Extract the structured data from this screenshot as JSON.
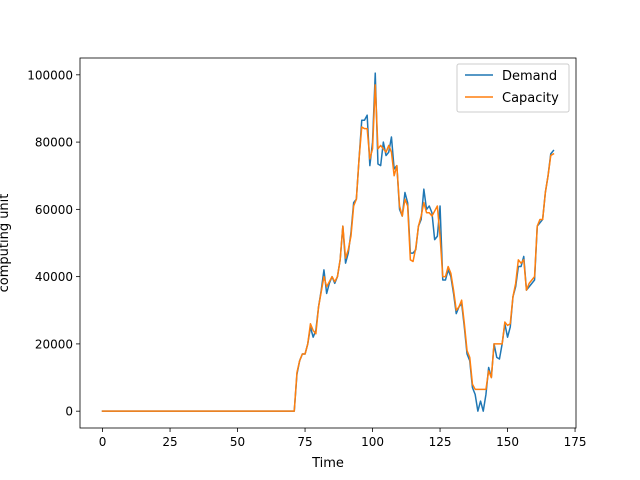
{
  "chart_data": {
    "type": "line",
    "title": "",
    "xlabel": "Time",
    "ylabel": "computing unit",
    "xlim": [
      -8.35,
      175.35
    ],
    "ylim": [
      -5000,
      105000
    ],
    "xticks": [
      0,
      25,
      50,
      75,
      100,
      125,
      150,
      175
    ],
    "xtick_labels": [
      "0",
      "25",
      "50",
      "75",
      "100",
      "125",
      "150",
      "175"
    ],
    "yticks": [
      0,
      20000,
      40000,
      60000,
      80000,
      100000
    ],
    "ytick_labels": [
      "0",
      "20000",
      "40000",
      "60000",
      "80000",
      "100000"
    ],
    "grid": false,
    "legend": "upper right",
    "series": [
      {
        "name": "Demand",
        "color": "#1f77b4",
        "x": [
          0,
          10,
          20,
          30,
          40,
          50,
          60,
          71,
          72,
          73,
          74,
          75,
          76,
          77,
          78,
          79,
          80,
          81,
          82,
          83,
          84,
          85,
          86,
          87,
          88,
          89,
          90,
          91,
          92,
          93,
          94,
          95,
          96,
          97,
          98,
          99,
          100,
          101,
          102,
          103,
          104,
          105,
          106,
          107,
          108,
          109,
          110,
          111,
          112,
          113,
          114,
          115,
          116,
          117,
          118,
          119,
          120,
          121,
          122,
          123,
          124,
          125,
          126,
          127,
          128,
          129,
          130,
          131,
          132,
          133,
          134,
          135,
          136,
          137,
          138,
          139,
          140,
          141,
          142,
          143,
          144,
          145,
          146,
          147,
          148,
          149,
          150,
          151,
          152,
          153,
          154,
          155,
          156,
          157,
          158,
          159,
          160,
          161,
          162,
          163,
          164,
          165,
          166,
          167
        ],
        "values": [
          0,
          0,
          0,
          0,
          0,
          0,
          0,
          0,
          11000,
          15000,
          17000,
          17000,
          20000,
          25000,
          22000,
          24000,
          31000,
          36000,
          42000,
          35000,
          38000,
          40000,
          38000,
          40000,
          45000,
          55000,
          44000,
          47000,
          53000,
          62000,
          63000,
          75000,
          86500,
          86500,
          88000,
          73000,
          80000,
          100500,
          73500,
          73000,
          80000,
          76000,
          77000,
          81500,
          72000,
          73000,
          60000,
          58000,
          65000,
          62000,
          47000,
          47000,
          48000,
          55000,
          57000,
          66000,
          60000,
          61000,
          59000,
          51000,
          52000,
          61000,
          39000,
          39000,
          42000,
          40000,
          35000,
          29000,
          31000,
          32000,
          25000,
          17000,
          15000,
          7000,
          5000,
          0,
          3000,
          0,
          5000,
          13000,
          10000,
          20000,
          16000,
          15500,
          20000,
          26000,
          22000,
          25000,
          34000,
          37000,
          43000,
          43000,
          46000,
          36000,
          37000,
          38000,
          39000,
          55000,
          56000,
          57000,
          65000,
          70000,
          76500,
          77500
        ]
      },
      {
        "name": "Capacity",
        "color": "#ff7f0e",
        "x": [
          0,
          10,
          20,
          30,
          40,
          50,
          60,
          71,
          72,
          73,
          74,
          75,
          76,
          77,
          78,
          79,
          80,
          81,
          82,
          83,
          84,
          85,
          86,
          87,
          88,
          89,
          90,
          91,
          92,
          93,
          94,
          95,
          96,
          97,
          98,
          99,
          100,
          101,
          102,
          103,
          104,
          105,
          106,
          107,
          108,
          109,
          110,
          111,
          112,
          113,
          114,
          115,
          116,
          117,
          118,
          119,
          120,
          121,
          122,
          123,
          124,
          125,
          126,
          127,
          128,
          129,
          130,
          131,
          132,
          133,
          134,
          135,
          136,
          137,
          138,
          139,
          140,
          141,
          142,
          143,
          144,
          145,
          146,
          147,
          148,
          149,
          150,
          151,
          152,
          153,
          154,
          155,
          156,
          157,
          158,
          159,
          160,
          161,
          162,
          163,
          164,
          165,
          166,
          167
        ],
        "values": [
          0,
          0,
          0,
          0,
          0,
          0,
          0,
          0,
          11500,
          15000,
          17000,
          17000,
          20000,
          26000,
          24000,
          23000,
          31000,
          35500,
          40000,
          37000,
          38500,
          40000,
          38500,
          40000,
          45000,
          55000,
          45500,
          48000,
          52000,
          61000,
          63000,
          75000,
          84500,
          84000,
          84000,
          75000,
          78000,
          97000,
          78000,
          79000,
          78000,
          77000,
          79000,
          77000,
          70000,
          73000,
          61000,
          58000,
          63000,
          61000,
          45000,
          44500,
          48500,
          55000,
          58000,
          62000,
          59000,
          59000,
          58000,
          59500,
          61000,
          52000,
          40000,
          40000,
          43000,
          41000,
          36000,
          30000,
          31000,
          33000,
          26000,
          18000,
          16000,
          8000,
          6500,
          6500,
          6500,
          6500,
          6500,
          12000,
          10000,
          20000,
          20000,
          20000,
          20000,
          26500,
          25500,
          26000,
          34000,
          38000,
          45000,
          44000,
          45000,
          36000,
          38000,
          39000,
          40000,
          55000,
          57000,
          57000,
          65000,
          70000,
          76000,
          76500
        ]
      }
    ]
  }
}
